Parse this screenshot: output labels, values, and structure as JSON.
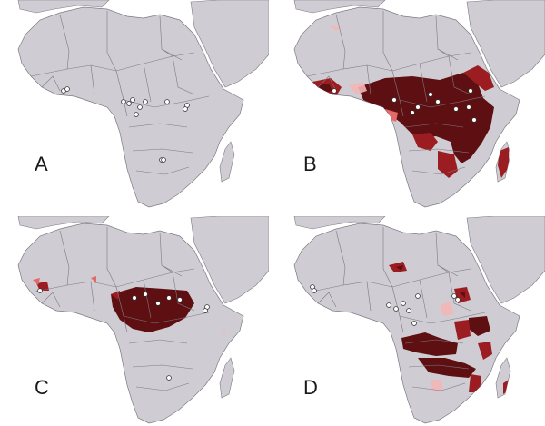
{
  "colors": {
    "sea": "#ffffff",
    "land": "#cfcdd3",
    "border": "#7d7b82",
    "high": "#5e0f12",
    "mid": "#9b1d22",
    "low": "#e46a6a",
    "faint": "#f2b7b7",
    "point_fill": "#ffffff",
    "point_stroke": "#333333"
  },
  "panels": [
    {
      "id": "A",
      "label": "A",
      "description": "occurrence-points-only"
    },
    {
      "id": "B",
      "label": "B",
      "description": "wide-central-east-africa-range"
    },
    {
      "id": "C",
      "label": "C",
      "description": "congo-basin-range"
    },
    {
      "id": "D",
      "label": "D",
      "description": "fragmented-east-southern-range"
    }
  ]
}
